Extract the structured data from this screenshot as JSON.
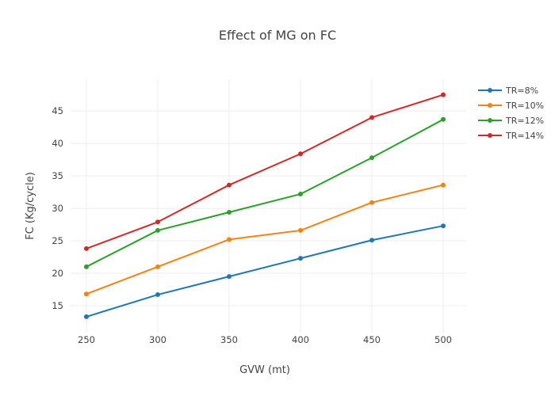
{
  "chart_data": {
    "type": "line",
    "title": "Effect of MG on FC",
    "xlabel": "GVW (mt)",
    "ylabel": "FC (Kg/cycle)",
    "x": [
      250,
      300,
      350,
      400,
      450,
      500
    ],
    "xticks": [
      250,
      300,
      350,
      400,
      450,
      500
    ],
    "yticks": [
      15,
      20,
      25,
      30,
      35,
      40,
      45
    ],
    "xlim": [
      238.9,
      516.1
    ],
    "ylim": [
      10.85,
      49.9
    ],
    "grid": true,
    "legend_position": "top-right",
    "series": [
      {
        "name": "TR=8%",
        "color": "#1f77b4",
        "values": [
          13.3,
          16.7,
          19.5,
          22.3,
          25.1,
          27.3
        ]
      },
      {
        "name": "TR=10%",
        "color": "#ff7f0e",
        "values": [
          16.8,
          21.0,
          25.2,
          26.6,
          30.9,
          33.6
        ]
      },
      {
        "name": "TR=12%",
        "color": "#2ca02c",
        "values": [
          21.0,
          26.6,
          29.4,
          32.2,
          37.8,
          43.7
        ]
      },
      {
        "name": "TR=14%",
        "color": "#d62728",
        "values": [
          23.8,
          27.9,
          33.6,
          38.4,
          44.0,
          47.5
        ]
      }
    ]
  }
}
